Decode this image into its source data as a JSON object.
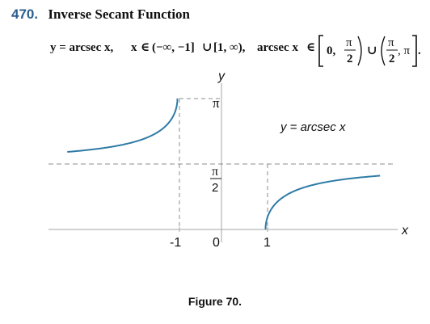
{
  "heading": {
    "number": "470.",
    "title": "Inverse Secant Function"
  },
  "formula": {
    "lhs": "y = arcsec x,",
    "x_symbol": "x",
    "in_symbol": "∈",
    "domain_left": "(−∞, −1]",
    "union": "∪",
    "domain_right": "[1, ∞),",
    "fn": "arcsec x",
    "range_zero": "0,",
    "pi": "π",
    "two": "2",
    "range_tail": ", π",
    "end": "."
  },
  "graph": {
    "x_axis_label": "x",
    "y_axis_label": "y",
    "x_ticks": [
      "-1",
      "0",
      "1"
    ],
    "y_tick_pi": "π",
    "y_tick_half_pi_num": "π",
    "y_tick_half_pi_den": "2",
    "curve_label": "y = arcsec x",
    "curve_color": "#2e7ba6",
    "axis_color": "#a6a6a6",
    "dash_color": "#8c8c8c"
  },
  "caption": "Figure 70."
}
